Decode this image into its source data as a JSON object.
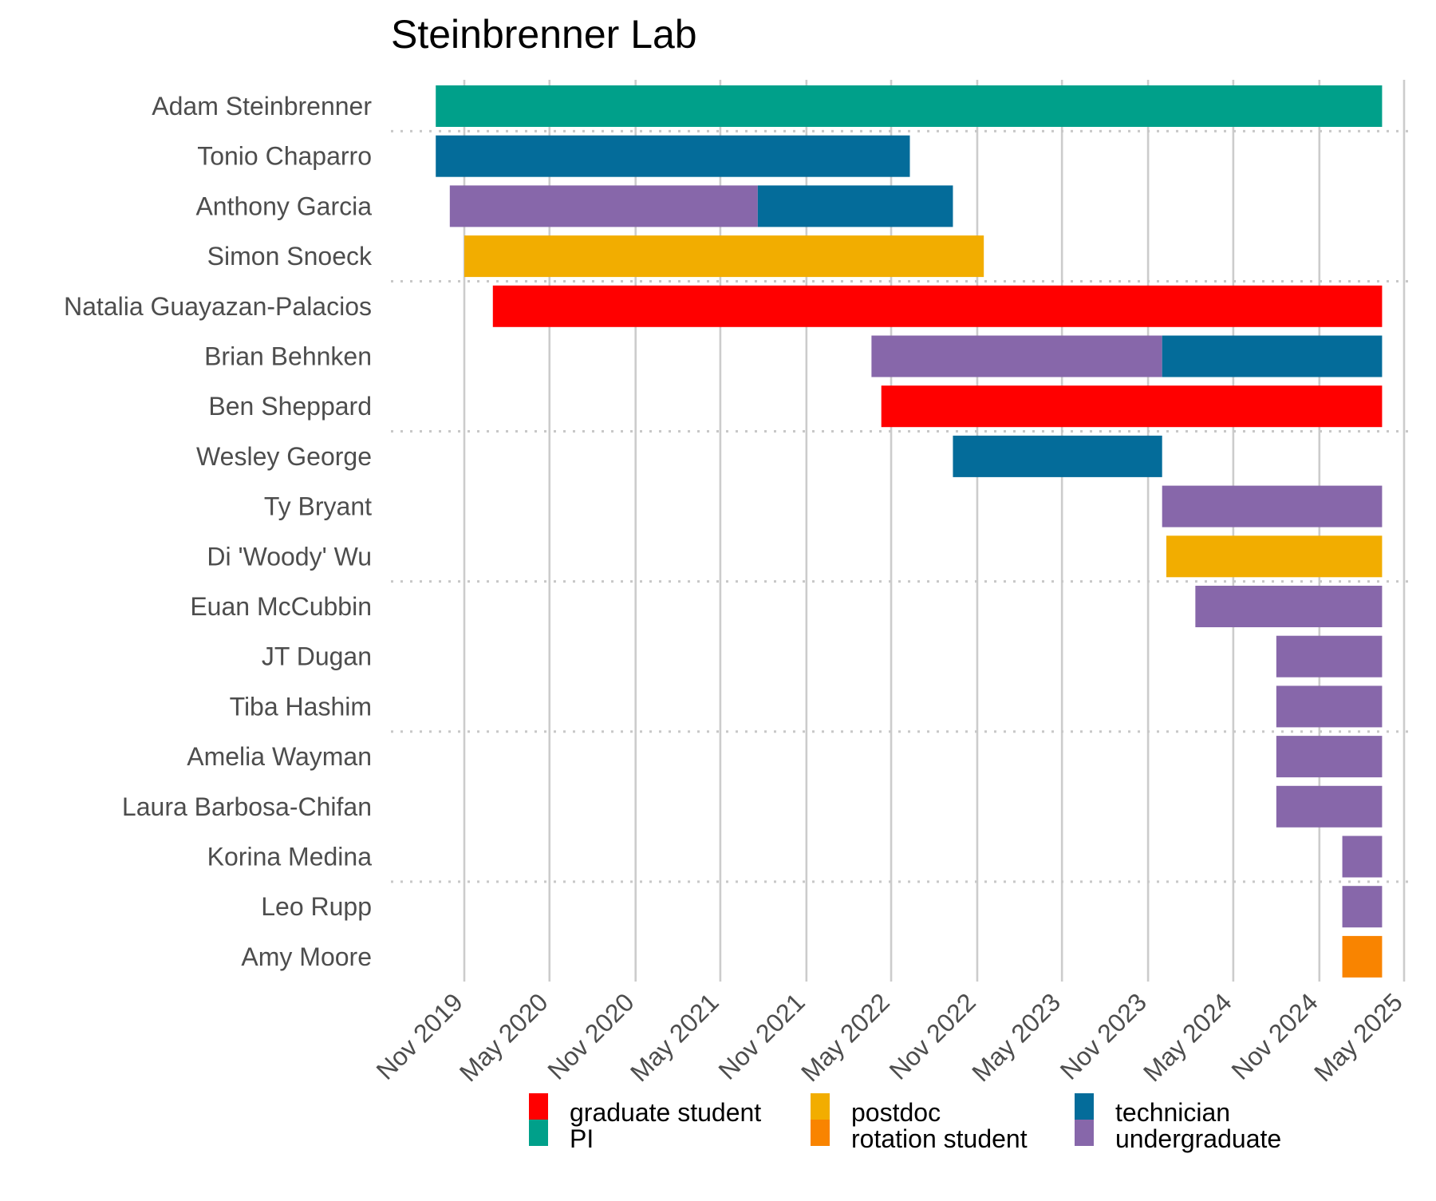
{
  "chart_data": {
    "type": "bar",
    "orientation": "horizontal-timeline",
    "title": "Steinbrenner Lab",
    "xlabel": "",
    "ylabel": "",
    "x_axis": {
      "type": "date",
      "ticks": [
        {
          "date": "2019-11-01",
          "label": "Nov 2019"
        },
        {
          "date": "2020-05-01",
          "label": "May 2020"
        },
        {
          "date": "2020-11-01",
          "label": "Nov 2020"
        },
        {
          "date": "2021-05-01",
          "label": "May 2021"
        },
        {
          "date": "2021-11-01",
          "label": "Nov 2021"
        },
        {
          "date": "2022-05-01",
          "label": "May 2022"
        },
        {
          "date": "2022-11-01",
          "label": "Nov 2022"
        },
        {
          "date": "2023-05-01",
          "label": "May 2023"
        },
        {
          "date": "2023-11-01",
          "label": "Nov 2023"
        },
        {
          "date": "2024-05-01",
          "label": "May 2024"
        },
        {
          "date": "2024-11-01",
          "label": "Nov 2024"
        },
        {
          "date": "2025-05-01",
          "label": "May 2025"
        }
      ],
      "range": [
        "2019-08-01",
        "2025-06-01"
      ],
      "tick_label_angle": 45,
      "grid": "vertical-major"
    },
    "legend": {
      "position": "bottom",
      "items": [
        {
          "key": "graduate_student",
          "label": "graduate student",
          "color": "#FF0000"
        },
        {
          "key": "PI",
          "label": "PI",
          "color": "#00A08A"
        },
        {
          "key": "postdoc",
          "label": "postdoc",
          "color": "#F2AD00"
        },
        {
          "key": "rotation_student",
          "label": "rotation student",
          "color": "#F98400"
        },
        {
          "key": "technician",
          "label": "technician",
          "color": "#046C9A"
        },
        {
          "key": "undergraduate",
          "label": "undergraduate",
          "color": "#8767AA"
        }
      ]
    },
    "group_separators_after": [
      1,
      4,
      7,
      10,
      13,
      16
    ],
    "people": [
      {
        "name": "Adam Steinbrenner",
        "segments": [
          {
            "role": "PI",
            "start": "2019-09-01",
            "end": "2025-03-15"
          }
        ]
      },
      {
        "name": "Tonio Chaparro",
        "segments": [
          {
            "role": "technician",
            "start": "2019-09-01",
            "end": "2022-06-10"
          }
        ]
      },
      {
        "name": "Anthony Garcia",
        "segments": [
          {
            "role": "undergraduate",
            "start": "2019-10-01",
            "end": "2021-07-20"
          },
          {
            "role": "technician",
            "start": "2021-07-20",
            "end": "2022-09-10"
          }
        ]
      },
      {
        "name": "Simon Snoeck",
        "segments": [
          {
            "role": "postdoc",
            "start": "2019-11-01",
            "end": "2022-11-15"
          }
        ]
      },
      {
        "name": "Natalia Guayazan-Palacios",
        "segments": [
          {
            "role": "graduate_student",
            "start": "2020-01-01",
            "end": "2025-03-15"
          }
        ]
      },
      {
        "name": "Brian Behnken",
        "segments": [
          {
            "role": "undergraduate",
            "start": "2022-03-20",
            "end": "2023-12-01"
          },
          {
            "role": "technician",
            "start": "2023-12-01",
            "end": "2025-03-15"
          }
        ]
      },
      {
        "name": "Ben Sheppard",
        "segments": [
          {
            "role": "graduate_student",
            "start": "2022-04-10",
            "end": "2025-03-15"
          }
        ]
      },
      {
        "name": "Wesley George",
        "segments": [
          {
            "role": "technician",
            "start": "2022-09-10",
            "end": "2023-12-01"
          }
        ]
      },
      {
        "name": "Ty Bryant",
        "segments": [
          {
            "role": "undergraduate",
            "start": "2023-12-01",
            "end": "2025-03-15"
          }
        ]
      },
      {
        "name": "Di 'Woody' Wu",
        "segments": [
          {
            "role": "postdoc",
            "start": "2023-12-10",
            "end": "2025-03-15"
          }
        ]
      },
      {
        "name": "Euan McCubbin",
        "segments": [
          {
            "role": "undergraduate",
            "start": "2024-02-10",
            "end": "2025-03-15"
          }
        ]
      },
      {
        "name": "JT Dugan",
        "segments": [
          {
            "role": "undergraduate",
            "start": "2024-08-01",
            "end": "2025-03-15"
          }
        ]
      },
      {
        "name": "Tiba Hashim",
        "segments": [
          {
            "role": "undergraduate",
            "start": "2024-08-01",
            "end": "2025-03-15"
          }
        ]
      },
      {
        "name": "Amelia Wayman",
        "segments": [
          {
            "role": "undergraduate",
            "start": "2024-08-01",
            "end": "2025-03-15"
          }
        ]
      },
      {
        "name": "Laura Barbosa-Chifan",
        "segments": [
          {
            "role": "undergraduate",
            "start": "2024-08-01",
            "end": "2025-03-15"
          }
        ]
      },
      {
        "name": "Korina Medina",
        "segments": [
          {
            "role": "undergraduate",
            "start": "2024-12-20",
            "end": "2025-03-15"
          }
        ]
      },
      {
        "name": "Leo Rupp",
        "segments": [
          {
            "role": "undergraduate",
            "start": "2024-12-20",
            "end": "2025-03-15"
          }
        ]
      },
      {
        "name": "Amy Moore",
        "segments": [
          {
            "role": "rotation_student",
            "start": "2024-12-20",
            "end": "2025-03-15"
          }
        ]
      }
    ]
  }
}
